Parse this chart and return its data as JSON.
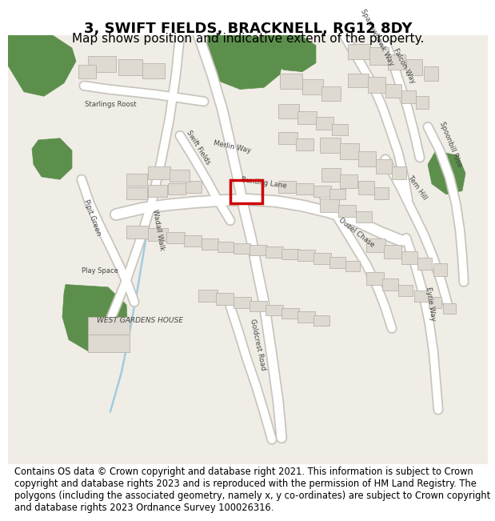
{
  "title": "3, SWIFT FIELDS, BRACKNELL, RG12 8DY",
  "subtitle": "Map shows position and indicative extent of the property.",
  "copyright_text": "Contains OS data © Crown copyright and database right 2021. This information is subject to Crown copyright and database rights 2023 and is reproduced with the permission of HM Land Registry. The polygons (including the associated geometry, namely x, y co-ordinates) are subject to Crown copyright and database rights 2023 Ordnance Survey 100026316.",
  "map_bg_color": "#f0ede6",
  "road_color": "#ffffff",
  "road_outline_color": "#c8c4bc",
  "building_color": "#dedad2",
  "building_outline_color": "#b8b4ac",
  "green_color": "#5c8f4c",
  "highlight_color": "#cc0000",
  "water_color": "#a0cce0",
  "title_fontsize": 13,
  "subtitle_fontsize": 11,
  "copyright_fontsize": 8.3,
  "label_color": "#444444",
  "label_fontsize": 6.2
}
